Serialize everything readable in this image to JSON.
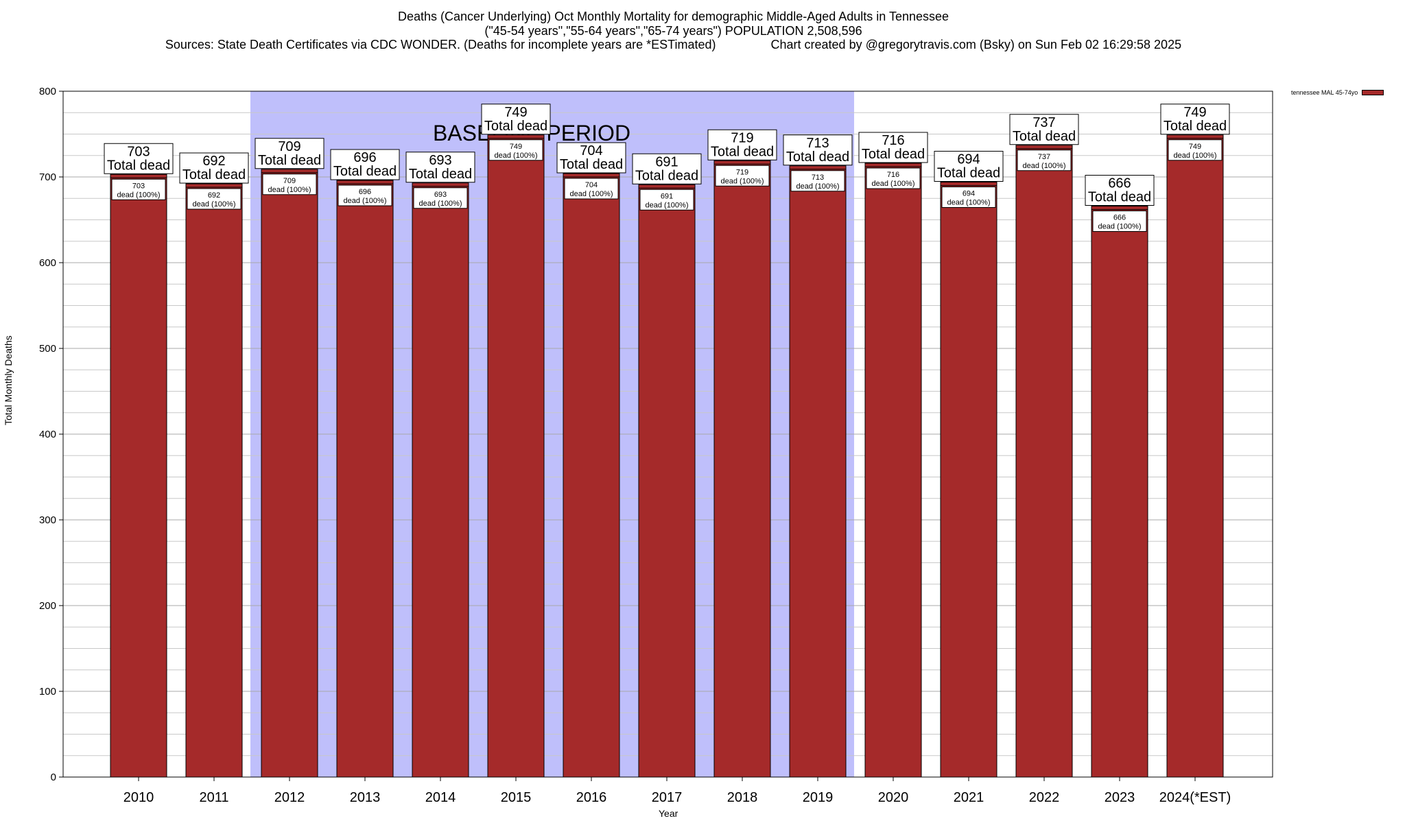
{
  "header": {
    "title_line1": "Deaths (Cancer Underlying) Oct Monthly Mortality for demographic Middle-Aged Adults in Tennessee",
    "title_line2": "(\"45-54 years\",\"55-64 years\",\"65-74 years\") POPULATION 2,508,596",
    "title_line3": "Sources: State Death Certificates via CDC WONDER. (Deaths for incomplete years are *ESTimated)                Chart created by @gregorytravis.com (Bsky) on Sun Feb 02 16:29:58 2025"
  },
  "chart_data": {
    "type": "bar",
    "categories": [
      "2010",
      "2011",
      "2012",
      "2013",
      "2014",
      "2015",
      "2016",
      "2017",
      "2018",
      "2019",
      "2020",
      "2021",
      "2022",
      "2023",
      "2024(*EST)"
    ],
    "series": [
      {
        "name": "tennessee MAL 45-74yo",
        "values": [
          703,
          692,
          709,
          696,
          693,
          749,
          704,
          691,
          719,
          713,
          716,
          694,
          737,
          666,
          749
        ]
      }
    ],
    "top_labels": [
      "703",
      "692",
      "709",
      "696",
      "693",
      "749",
      "704",
      "691",
      "719",
      "713",
      "716",
      "694",
      "737",
      "666",
      "749"
    ],
    "top_label_suffix": "Total dead",
    "inner_labels": [
      "703",
      "692",
      "709",
      "696",
      "693",
      "749",
      "704",
      "691",
      "719",
      "713",
      "716",
      "694",
      "737",
      "666",
      "749"
    ],
    "inner_label_suffix": "dead (100%)",
    "baseline_period": {
      "label": "BASELINE PERIOD",
      "start": "2012",
      "end": "2019"
    },
    "xlabel": "Year",
    "ylabel": "Total Monthly Deaths",
    "ylim": [
      0,
      800
    ],
    "yticks": [
      0,
      100,
      200,
      300,
      400,
      500,
      600,
      700,
      800
    ],
    "grid": true,
    "legend_position": "top-right",
    "colors": {
      "bar": "#a52a2a",
      "baseline": "#bfbffb"
    }
  }
}
